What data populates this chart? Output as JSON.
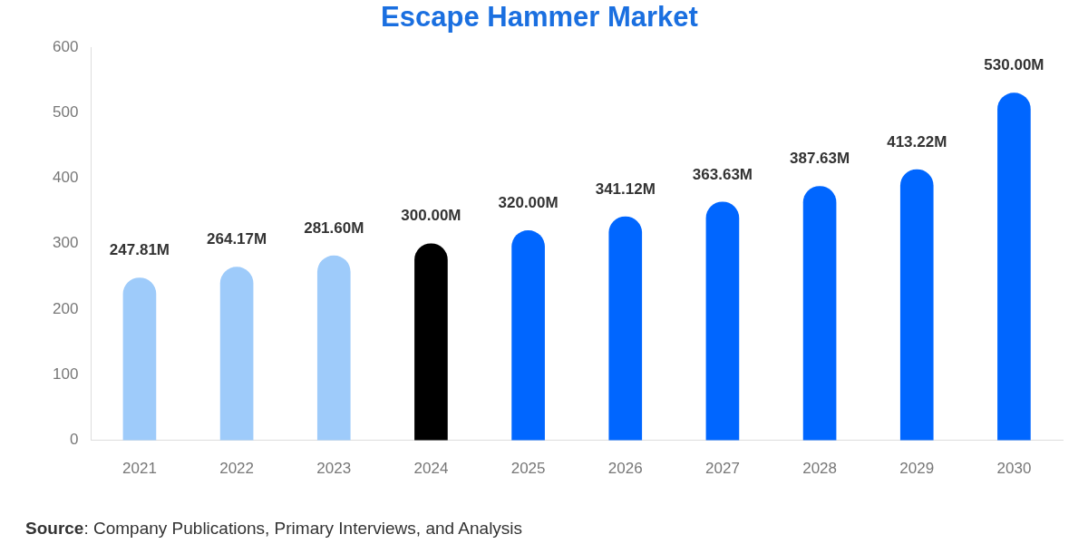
{
  "chart_data": {
    "type": "bar",
    "title": "Escape Hammer Market",
    "categories": [
      "2021",
      "2022",
      "2023",
      "2024",
      "2025",
      "2026",
      "2027",
      "2028",
      "2029",
      "2030"
    ],
    "values": [
      247.81,
      264.17,
      281.6,
      300,
      320,
      341.12,
      363.63,
      387.63,
      413.22,
      530
    ],
    "colors": [
      "#9ecbfa",
      "#9ecbfa",
      "#9ecbfa",
      "#000000",
      "#0066ff",
      "#0066ff",
      "#0066ff",
      "#0066ff",
      "#0066ff",
      "#0066ff"
    ],
    "value_labels": [
      "247.81M",
      "264.17M",
      "281.60M",
      "300.00M",
      "320.00M",
      "341.12M",
      "363.63M",
      "387.63M",
      "413.22M",
      "530.00M"
    ],
    "ylim": [
      0,
      600
    ],
    "yticks": [
      0,
      100,
      200,
      300,
      400,
      500,
      600
    ],
    "annotations": [
      "Source: Company Publications, Primary Interviews, and Analysis"
    ]
  }
}
